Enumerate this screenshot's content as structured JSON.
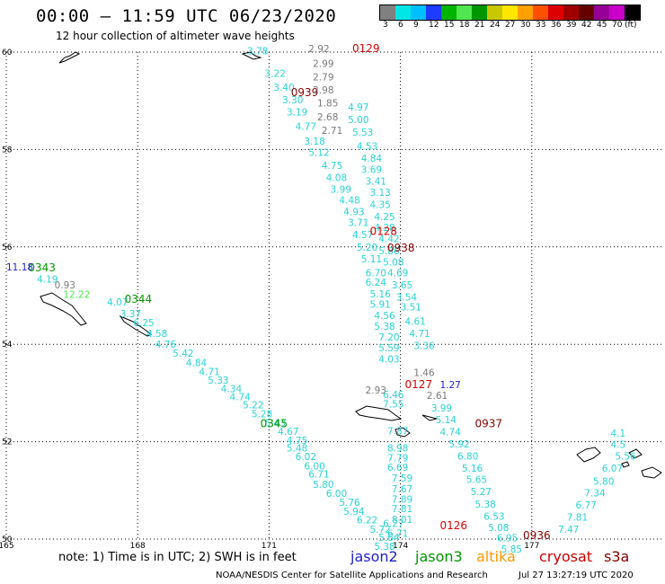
{
  "header": {
    "title": "00:00 – 11:59 UTC 06/23/2020",
    "subtitle": "12 hour collection of altimeter wave heights"
  },
  "colorbar": {
    "colors": [
      "#808080",
      "#00e5e5",
      "#00bfff",
      "#1e3cff",
      "#00b400",
      "#50e650",
      "#009600",
      "#c8c800",
      "#ffe600",
      "#ffa000",
      "#ff5000",
      "#dc0000",
      "#a00000",
      "#640000",
      "#960096",
      "#c800c8",
      "#000000"
    ],
    "ticks": [
      "3",
      "6",
      "9",
      "12",
      "15",
      "18",
      "21",
      "24",
      "27",
      "30",
      "33",
      "36",
      "39",
      "42",
      "45",
      "70",
      "(ft)"
    ]
  },
  "axes": {
    "x_ticks": [
      "165",
      "168",
      "171",
      "174",
      "177"
    ],
    "y_ticks": [
      "60",
      "58",
      "56",
      "54",
      "52",
      "50"
    ],
    "x_values": [
      165,
      168,
      171,
      174,
      177
    ],
    "y_values": [
      60,
      58,
      56,
      54,
      52,
      50
    ]
  },
  "footer": {
    "note": "note: 1) Time is in UTC; 2) SWH is in feet",
    "credit": "NOAA/NESDIS Center for Satellite Applications and Research",
    "timestamp": "Jul 27 13:27:19 UTC 2020",
    "legend": [
      {
        "name": "jason2",
        "color": "#1e1ecc"
      },
      {
        "name": "jason3",
        "color": "#009600"
      },
      {
        "name": "altika",
        "color": "#ff9900"
      },
      {
        "name": "cryosat",
        "color": "#cc0000"
      },
      {
        "name": "s3a",
        "color": "#880000"
      }
    ]
  },
  "tracks": [
    {
      "satellite": "s3a",
      "color": "#29d3d3",
      "time_labels": [
        {
          "text": "0939",
          "color": "#880000",
          "lon": 171.5,
          "lat": 59.1
        }
      ],
      "points": [
        {
          "lon": 170.5,
          "lat": 59.95,
          "swh": "3.78"
        },
        {
          "lon": 170.9,
          "lat": 59.49,
          "swh": "3.22"
        },
        {
          "lon": 171.1,
          "lat": 59.21,
          "swh": "3.40"
        },
        {
          "lon": 171.3,
          "lat": 58.95,
          "swh": "3.30"
        },
        {
          "lon": 171.4,
          "lat": 58.7,
          "swh": "3.19"
        },
        {
          "lon": 171.6,
          "lat": 58.4,
          "swh": "4.77"
        },
        {
          "lon": 171.8,
          "lat": 58.1,
          "swh": "3.18"
        },
        {
          "lon": 171.9,
          "lat": 57.87,
          "swh": "5.12"
        },
        {
          "lon": 172.2,
          "lat": 57.6,
          "swh": "4.75"
        },
        {
          "lon": 172.3,
          "lat": 57.35,
          "swh": "4.08"
        },
        {
          "lon": 172.4,
          "lat": 57.11,
          "swh": "3.99"
        },
        {
          "lon": 172.6,
          "lat": 56.89,
          "swh": "4.48"
        },
        {
          "lon": 172.7,
          "lat": 56.65,
          "swh": "4.93"
        },
        {
          "lon": 172.8,
          "lat": 56.43,
          "swh": "3.71"
        },
        {
          "lon": 172.9,
          "lat": 56.18,
          "swh": "4.57"
        },
        {
          "lon": 173.0,
          "lat": 55.92,
          "swh": "5.20"
        },
        {
          "lon": 173.1,
          "lat": 55.68,
          "swh": "5.11"
        },
        {
          "lon": 173.2,
          "lat": 55.4,
          "swh": "6.70"
        },
        {
          "lon": 173.2,
          "lat": 55.2,
          "swh": "6.24"
        },
        {
          "lon": 173.3,
          "lat": 54.96,
          "swh": "5.16"
        },
        {
          "lon": 173.3,
          "lat": 54.75,
          "swh": "5.91"
        },
        {
          "lon": 173.4,
          "lat": 54.52,
          "swh": "4.56"
        },
        {
          "lon": 173.4,
          "lat": 54.3,
          "swh": "5.38"
        },
        {
          "lon": 173.5,
          "lat": 54.08,
          "swh": "7.20"
        },
        {
          "lon": 173.5,
          "lat": 53.86,
          "swh": "5.59"
        },
        {
          "lon": 173.5,
          "lat": 53.63,
          "swh": "4.03"
        },
        {
          "lon": 173.6,
          "lat": 52.9,
          "swh": "6.46"
        },
        {
          "lon": 173.6,
          "lat": 52.7,
          "swh": "7.55"
        },
        {
          "lon": 173.7,
          "lat": 52.15,
          "swh": "7.87"
        },
        {
          "lon": 173.7,
          "lat": 51.8,
          "swh": "8.98"
        },
        {
          "lon": 173.7,
          "lat": 51.6,
          "swh": "7.79"
        },
        {
          "lon": 173.7,
          "lat": 51.4,
          "swh": "6.69"
        },
        {
          "lon": 173.8,
          "lat": 51.18,
          "swh": "7.59"
        },
        {
          "lon": 173.8,
          "lat": 50.96,
          "swh": "7.67"
        },
        {
          "lon": 173.8,
          "lat": 50.75,
          "swh": "7.89"
        },
        {
          "lon": 173.8,
          "lat": 50.55,
          "swh": "7.81"
        },
        {
          "lon": 173.8,
          "lat": 50.33,
          "swh": "8.01"
        },
        {
          "lon": 173.6,
          "lat": 50.25,
          "swh": "6.27"
        },
        {
          "lon": 173.7,
          "lat": 50.05,
          "swh": "6.71"
        }
      ]
    },
    {
      "satellite": "s3a",
      "color": "#29d3d3",
      "time_labels": [],
      "points": [
        {
          "lon": 172.8,
          "lat": 58.8,
          "swh": "4.97"
        },
        {
          "lon": 172.8,
          "lat": 58.54,
          "swh": "5.00"
        },
        {
          "lon": 172.9,
          "lat": 58.28,
          "swh": "5.53"
        },
        {
          "lon": 173.0,
          "lat": 58.0,
          "swh": "4.53"
        },
        {
          "lon": 173.1,
          "lat": 57.75,
          "swh": "4.84"
        },
        {
          "lon": 173.1,
          "lat": 57.52,
          "swh": "3.69"
        },
        {
          "lon": 173.2,
          "lat": 57.28,
          "swh": "3.41"
        },
        {
          "lon": 173.3,
          "lat": 57.05,
          "swh": "3.13"
        },
        {
          "lon": 173.3,
          "lat": 56.8,
          "swh": "4.35"
        },
        {
          "lon": 173.4,
          "lat": 56.55,
          "swh": "4.25"
        },
        {
          "lon": 173.4,
          "lat": 56.33,
          "swh": "4.28"
        },
        {
          "lon": 173.5,
          "lat": 56.1,
          "swh": "4.42"
        },
        {
          "lon": 173.5,
          "lat": 55.85,
          "swh": "5.86"
        },
        {
          "lon": 173.6,
          "lat": 55.62,
          "swh": "5.08"
        },
        {
          "lon": 173.7,
          "lat": 55.4,
          "swh": "4.69"
        },
        {
          "lon": 173.8,
          "lat": 55.15,
          "swh": "3.65"
        },
        {
          "lon": 173.9,
          "lat": 54.9,
          "swh": "3.54"
        },
        {
          "lon": 174.0,
          "lat": 54.7,
          "swh": "3.51"
        },
        {
          "lon": 174.1,
          "lat": 54.4,
          "swh": "4.61"
        },
        {
          "lon": 174.2,
          "lat": 54.15,
          "swh": "4.71"
        },
        {
          "lon": 174.3,
          "lat": 53.9,
          "swh": "3.36"
        }
      ]
    },
    {
      "satellite": "cryosat",
      "color": "#7a7a7a",
      "time_labels": [
        {
          "text": "0129",
          "color": "#dd0000",
          "lon": 172.9,
          "lat": 60.0
        },
        {
          "text": "0128",
          "color": "#dd0000",
          "lon": 173.3,
          "lat": 56.25
        },
        {
          "text": "0127",
          "color": "#dd0000",
          "lon": 174.1,
          "lat": 53.1
        },
        {
          "text": "0126",
          "color": "#dd0000",
          "lon": 174.9,
          "lat": 50.2
        }
      ],
      "points": [
        {
          "lon": 171.9,
          "lat": 60.0,
          "swh": "2.92"
        },
        {
          "lon": 172.0,
          "lat": 59.7,
          "swh": "2.99"
        },
        {
          "lon": 172.0,
          "lat": 59.42,
          "swh": "2.79"
        },
        {
          "lon": 172.0,
          "lat": 59.15,
          "swh": "2.98"
        },
        {
          "lon": 172.1,
          "lat": 58.88,
          "swh": "1.85"
        },
        {
          "lon": 172.1,
          "lat": 58.6,
          "swh": "2.68"
        },
        {
          "lon": 172.2,
          "lat": 58.32,
          "swh": "2.71"
        },
        {
          "lon": 174.3,
          "lat": 53.35,
          "swh": "1.46"
        },
        {
          "lon": 174.6,
          "lat": 52.88,
          "swh": "2.61"
        },
        {
          "lon": 173.2,
          "lat": 52.99,
          "swh": "2.93"
        }
      ]
    },
    {
      "satellite": "s3a",
      "color": "#29d3d3",
      "time_labels": [
        {
          "text": "0938",
          "color": "#880000",
          "lon": 173.7,
          "lat": 55.9
        },
        {
          "text": "0937",
          "color": "#880000",
          "lon": 175.7,
          "lat": 52.3
        },
        {
          "text": "0936",
          "color": "#880000",
          "lon": 176.8,
          "lat": 50.0
        }
      ],
      "points": [
        {
          "lon": 174.7,
          "lat": 52.62,
          "swh": "3.99"
        },
        {
          "lon": 174.8,
          "lat": 52.38,
          "swh": "5.14"
        },
        {
          "lon": 174.9,
          "lat": 52.13,
          "swh": "4.74"
        },
        {
          "lon": 175.1,
          "lat": 51.88,
          "swh": "5.92"
        },
        {
          "lon": 175.3,
          "lat": 51.63,
          "swh": "6.80"
        },
        {
          "lon": 175.4,
          "lat": 51.38,
          "swh": "5.16"
        },
        {
          "lon": 175.5,
          "lat": 51.15,
          "swh": "5.65"
        },
        {
          "lon": 175.6,
          "lat": 50.9,
          "swh": "5.27"
        },
        {
          "lon": 175.7,
          "lat": 50.65,
          "swh": "5.38"
        },
        {
          "lon": 175.9,
          "lat": 50.4,
          "swh": "6.53"
        },
        {
          "lon": 176.0,
          "lat": 50.17,
          "swh": "5.08"
        },
        {
          "lon": 176.2,
          "lat": 49.95,
          "swh": "6.95"
        },
        {
          "lon": 176.3,
          "lat": 49.72,
          "swh": "5.85"
        }
      ]
    },
    {
      "satellite": "jason3",
      "color": "#29d3d3",
      "time_labels": [
        {
          "text": "0343",
          "color": "#009600",
          "lon": 165.5,
          "lat": 55.5
        },
        {
          "text": "0344",
          "color": "#009600",
          "lon": 167.7,
          "lat": 54.85
        },
        {
          "text": "0345",
          "color": "#009600",
          "lon": 170.8,
          "lat": 52.3
        }
      ],
      "points": [
        {
          "lon": 165.7,
          "lat": 55.27,
          "swh": "4.19"
        },
        {
          "lon": 167.3,
          "lat": 54.8,
          "swh": "4.07"
        },
        {
          "lon": 167.6,
          "lat": 54.56,
          "swh": "3.37"
        },
        {
          "lon": 167.9,
          "lat": 54.37,
          "swh": "6.25"
        },
        {
          "lon": 168.2,
          "lat": 54.15,
          "swh": "4.58"
        },
        {
          "lon": 168.4,
          "lat": 53.93,
          "swh": "4.76"
        },
        {
          "lon": 168.8,
          "lat": 53.75,
          "swh": "5.42"
        },
        {
          "lon": 169.1,
          "lat": 53.55,
          "swh": "4.84"
        },
        {
          "lon": 169.4,
          "lat": 53.37,
          "swh": "4.71"
        },
        {
          "lon": 169.6,
          "lat": 53.19,
          "swh": "5.33"
        },
        {
          "lon": 169.9,
          "lat": 53.02,
          "swh": "4.34"
        },
        {
          "lon": 170.1,
          "lat": 52.85,
          "swh": "4.74"
        },
        {
          "lon": 170.4,
          "lat": 52.68,
          "swh": "5.22"
        },
        {
          "lon": 170.6,
          "lat": 52.5,
          "swh": "5.28"
        },
        {
          "lon": 170.9,
          "lat": 52.32,
          "swh": "5.43"
        },
        {
          "lon": 171.2,
          "lat": 52.14,
          "swh": "4.67"
        },
        {
          "lon": 171.4,
          "lat": 51.96,
          "swh": "4.75"
        },
        {
          "lon": 171.4,
          "lat": 51.8,
          "swh": "5.48"
        },
        {
          "lon": 171.6,
          "lat": 51.62,
          "swh": "6.02"
        },
        {
          "lon": 171.8,
          "lat": 51.43,
          "swh": "6.00"
        },
        {
          "lon": 171.9,
          "lat": 51.26,
          "swh": "6.71"
        },
        {
          "lon": 172.0,
          "lat": 51.05,
          "swh": "5.80"
        },
        {
          "lon": 172.3,
          "lat": 50.87,
          "swh": "6.00"
        },
        {
          "lon": 172.6,
          "lat": 50.68,
          "swh": "5.76"
        },
        {
          "lon": 172.7,
          "lat": 50.5,
          "swh": "5.94"
        },
        {
          "lon": 173.0,
          "lat": 50.32,
          "swh": "6.22"
        },
        {
          "lon": 173.3,
          "lat": 50.13,
          "swh": "5.72"
        },
        {
          "lon": 173.5,
          "lat": 49.96,
          "swh": "5.64"
        },
        {
          "lon": 173.4,
          "lat": 49.78,
          "swh": "5.38"
        }
      ]
    },
    {
      "satellite": "jason2",
      "color": "#1e1ecc",
      "time_labels": [],
      "points": [
        {
          "lon": 165.0,
          "lat": 55.52,
          "swh": "11.18"
        },
        {
          "lon": 174.9,
          "lat": 53.1,
          "swh": "1.27"
        }
      ]
    },
    {
      "satellite": "cryosat",
      "color": "#7a7a7a",
      "time_labels": [],
      "points": [
        {
          "lon": 166.1,
          "lat": 55.15,
          "swh": "0.93"
        }
      ]
    },
    {
      "satellite": "jason3",
      "color": "#50e650",
      "time_labels": [],
      "points": [
        {
          "lon": 166.3,
          "lat": 54.95,
          "swh": "12.22"
        }
      ]
    },
    {
      "satellite": "s3a",
      "color": "#29d3d3",
      "time_labels": [],
      "points": [
        {
          "lon": 178.8,
          "lat": 52.1,
          "swh": "4.1"
        },
        {
          "lon": 178.8,
          "lat": 51.87,
          "swh": "4.5"
        },
        {
          "lon": 178.9,
          "lat": 51.63,
          "swh": "5.56"
        },
        {
          "lon": 178.6,
          "lat": 51.38,
          "swh": "6.07"
        },
        {
          "lon": 178.4,
          "lat": 51.12,
          "swh": "5.80"
        },
        {
          "lon": 178.2,
          "lat": 50.88,
          "swh": "7.34"
        },
        {
          "lon": 178.0,
          "lat": 50.63,
          "swh": "6.77"
        },
        {
          "lon": 177.8,
          "lat": 50.38,
          "swh": "7.81"
        },
        {
          "lon": 177.6,
          "lat": 50.13,
          "swh": "7.47"
        }
      ]
    }
  ]
}
